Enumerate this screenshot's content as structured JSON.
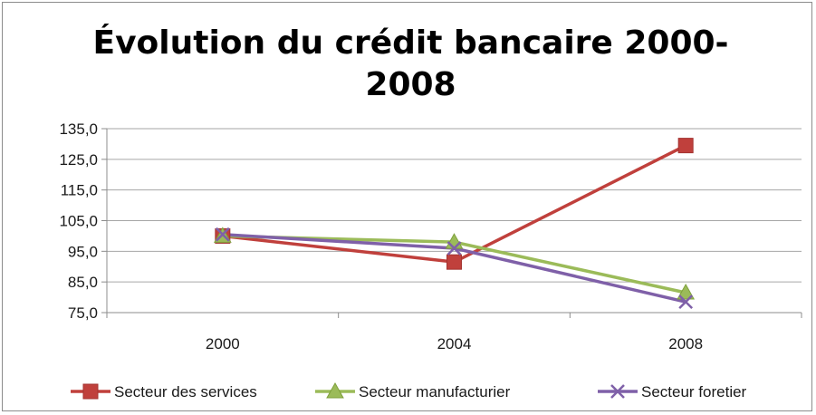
{
  "chart_data": {
    "type": "line",
    "title_line1": "Évolution du crédit bancaire 2000-",
    "title_line2": "2008",
    "categories": [
      "2000",
      "2004",
      "2008"
    ],
    "ylim": [
      75,
      135
    ],
    "yticks": [
      "75,0",
      "85,0",
      "95,0",
      "105,0",
      "115,0",
      "125,0",
      "135,0"
    ],
    "ytick_values": [
      75,
      85,
      95,
      105,
      115,
      125,
      135
    ],
    "grid": true,
    "legend_position": "bottom",
    "series": [
      {
        "name": "Secteur des services",
        "values": [
          100,
          91.5,
          129.5
        ],
        "color": "#c0403c",
        "marker": "square"
      },
      {
        "name": "Secteur manufacturier",
        "values": [
          100,
          98,
          81.5
        ],
        "color": "#9bbb59",
        "marker": "triangle"
      },
      {
        "name": "Secteur foretier",
        "values": [
          100.5,
          96,
          78.5
        ],
        "color": "#7f60a8",
        "marker": "x"
      }
    ]
  }
}
